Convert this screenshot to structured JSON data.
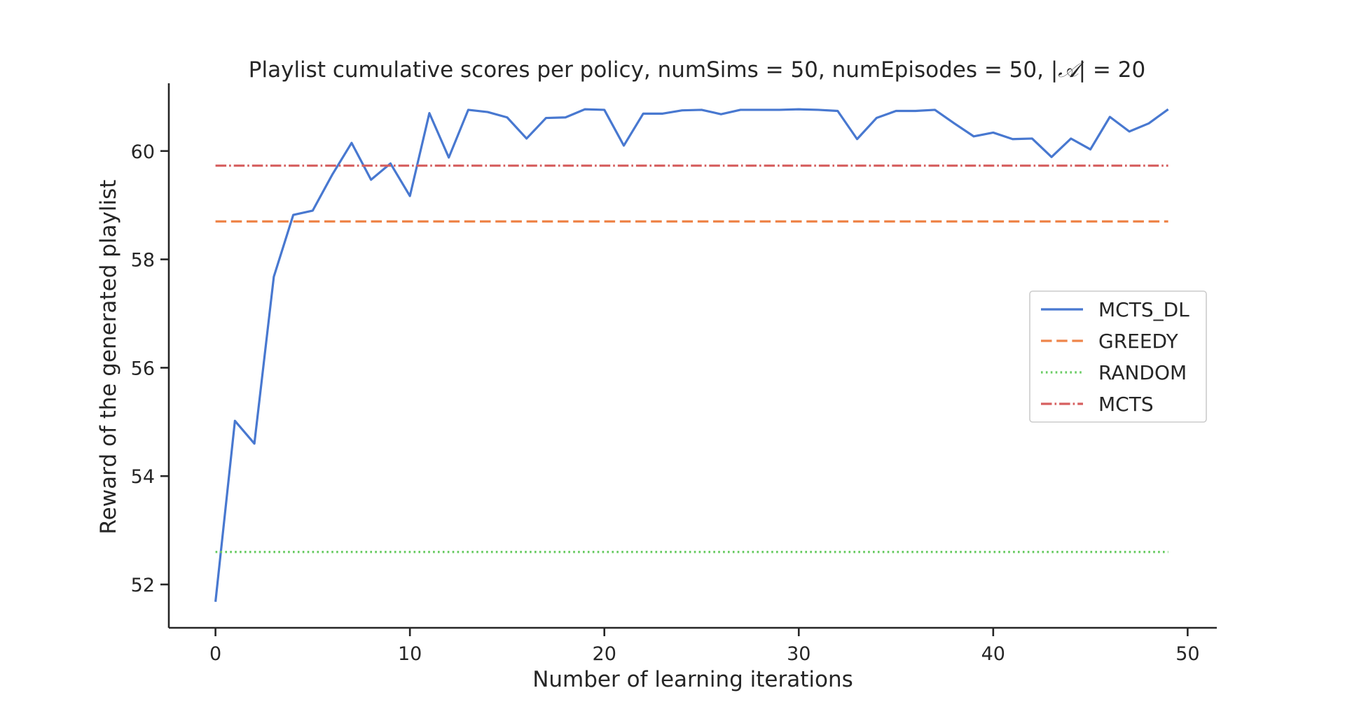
{
  "chart_data": {
    "type": "line",
    "title_prefix": "Playlist cumulative scores per policy, numSims = 50, numEpisodes = 50, |",
    "title_symbol": "𝒜",
    "title_suffix": "| = 20",
    "xlabel": "Number of learning iterations",
    "ylabel": "Reward of the generated playlist",
    "xlim": [
      -2.4,
      51.5
    ],
    "ylim": [
      51.2,
      61.25
    ],
    "xticks": [
      0,
      10,
      20,
      30,
      40,
      50
    ],
    "yticks": [
      52,
      54,
      56,
      58,
      60
    ],
    "legend_position": "center-right",
    "series": [
      {
        "name": "MCTS_DL",
        "style": "solid",
        "color": "#4878d0",
        "x": [
          0,
          1,
          2,
          3,
          4,
          5,
          6,
          7,
          8,
          9,
          10,
          11,
          12,
          13,
          14,
          15,
          16,
          17,
          18,
          19,
          20,
          21,
          22,
          23,
          24,
          25,
          26,
          27,
          28,
          29,
          30,
          31,
          32,
          33,
          34,
          35,
          36,
          37,
          38,
          39,
          40,
          41,
          42,
          43,
          44,
          45,
          46,
          47,
          48,
          49
        ],
        "values": [
          51.68,
          55.02,
          54.6,
          57.68,
          58.82,
          58.9,
          59.56,
          60.15,
          59.47,
          59.77,
          59.17,
          60.7,
          59.88,
          60.76,
          60.72,
          60.62,
          60.23,
          60.61,
          60.62,
          60.77,
          60.76,
          60.1,
          60.69,
          60.69,
          60.75,
          60.76,
          60.68,
          60.76,
          60.76,
          60.76,
          60.77,
          60.76,
          60.74,
          60.22,
          60.61,
          60.74,
          60.74,
          60.76,
          60.51,
          60.27,
          60.34,
          60.22,
          60.23,
          59.89,
          60.23,
          60.03,
          60.63,
          60.36,
          60.51,
          60.77
        ]
      },
      {
        "name": "GREEDY",
        "style": "dashed",
        "color": "#ee854a",
        "x": [
          0,
          49
        ],
        "values": [
          58.7,
          58.7
        ]
      },
      {
        "name": "RANDOM",
        "style": "dotted",
        "color": "#6acc64",
        "x": [
          0,
          49
        ],
        "values": [
          52.6,
          52.6
        ]
      },
      {
        "name": "MCTS",
        "style": "dashdot",
        "color": "#d65f5f",
        "x": [
          0,
          49
        ],
        "values": [
          59.73,
          59.73
        ]
      }
    ]
  }
}
